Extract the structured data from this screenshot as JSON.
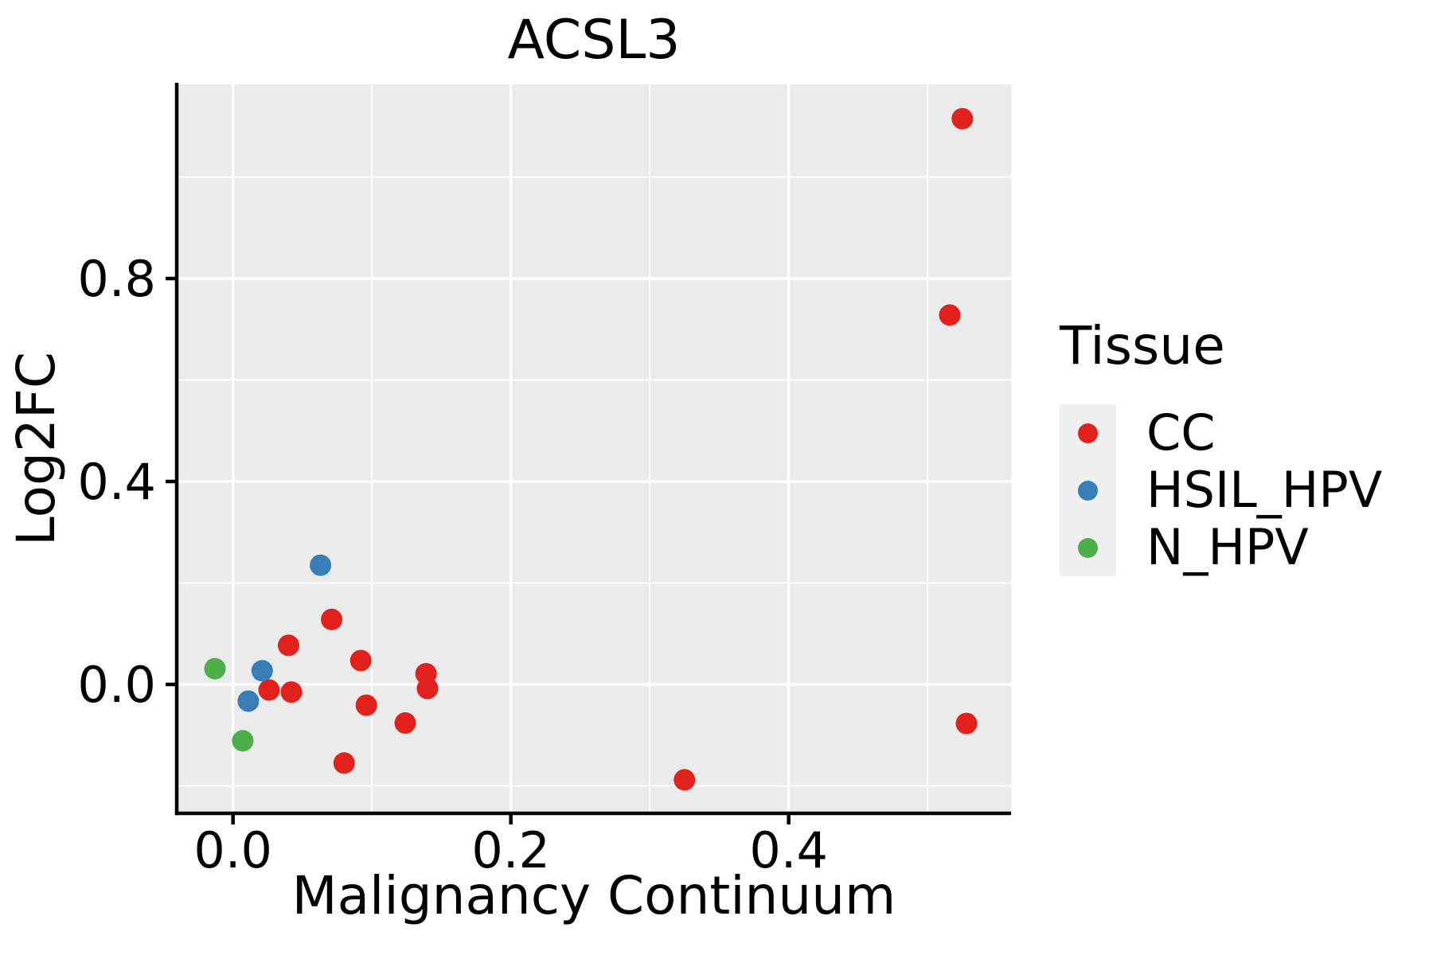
{
  "chart_data": {
    "type": "scatter",
    "title": "ACSL3",
    "xlabel": "Malignancy Continuum",
    "ylabel": "Log2FC",
    "legend": {
      "title": "Tissue",
      "position": "right"
    },
    "series": [
      {
        "name": "CC",
        "color": "#E3211C",
        "points": [
          [
            0.04,
            0.077
          ],
          [
            0.071,
            0.128
          ],
          [
            0.026,
            -0.011
          ],
          [
            0.042,
            -0.015
          ],
          [
            0.092,
            0.047
          ],
          [
            0.096,
            -0.041
          ],
          [
            0.124,
            -0.076
          ],
          [
            0.139,
            0.021
          ],
          [
            0.14,
            -0.008
          ],
          [
            0.08,
            -0.155
          ],
          [
            0.325,
            -0.188
          ],
          [
            0.528,
            -0.077
          ],
          [
            0.516,
            0.728
          ],
          [
            0.525,
            1.115
          ]
        ]
      },
      {
        "name": "HSIL_HPV",
        "color": "#377EB8",
        "points": [
          [
            0.063,
            0.235
          ],
          [
            0.021,
            0.027
          ],
          [
            0.011,
            -0.033
          ]
        ]
      },
      {
        "name": "N_HPV",
        "color": "#4DAF4A",
        "points": [
          [
            -0.013,
            0.031
          ],
          [
            0.007,
            -0.111
          ]
        ]
      }
    ],
    "x_axis": {
      "range": [
        -0.0405,
        0.5601
      ],
      "ticks": [
        {
          "value": 0.0,
          "label": "0.0"
        },
        {
          "value": 0.2,
          "label": "0.2"
        },
        {
          "value": 0.4,
          "label": "0.4"
        }
      ],
      "minor": [
        0.1,
        0.3,
        0.5
      ]
    },
    "y_axis": {
      "range": [
        -0.2541,
        1.1827
      ],
      "ticks": [
        {
          "value": 0.0,
          "label": "0.0"
        },
        {
          "value": 0.4,
          "label": "0.4"
        },
        {
          "value": 0.8,
          "label": "0.8"
        }
      ],
      "minor": [
        -0.2,
        0.2,
        0.6,
        1.0
      ]
    },
    "style": {
      "panel_bg": "#EBEBEB",
      "grid_color": "#FFFFFF",
      "axis_color": "#000000",
      "legend_key_bg": "#F0F0F0",
      "point_radius": 13.5
    }
  }
}
